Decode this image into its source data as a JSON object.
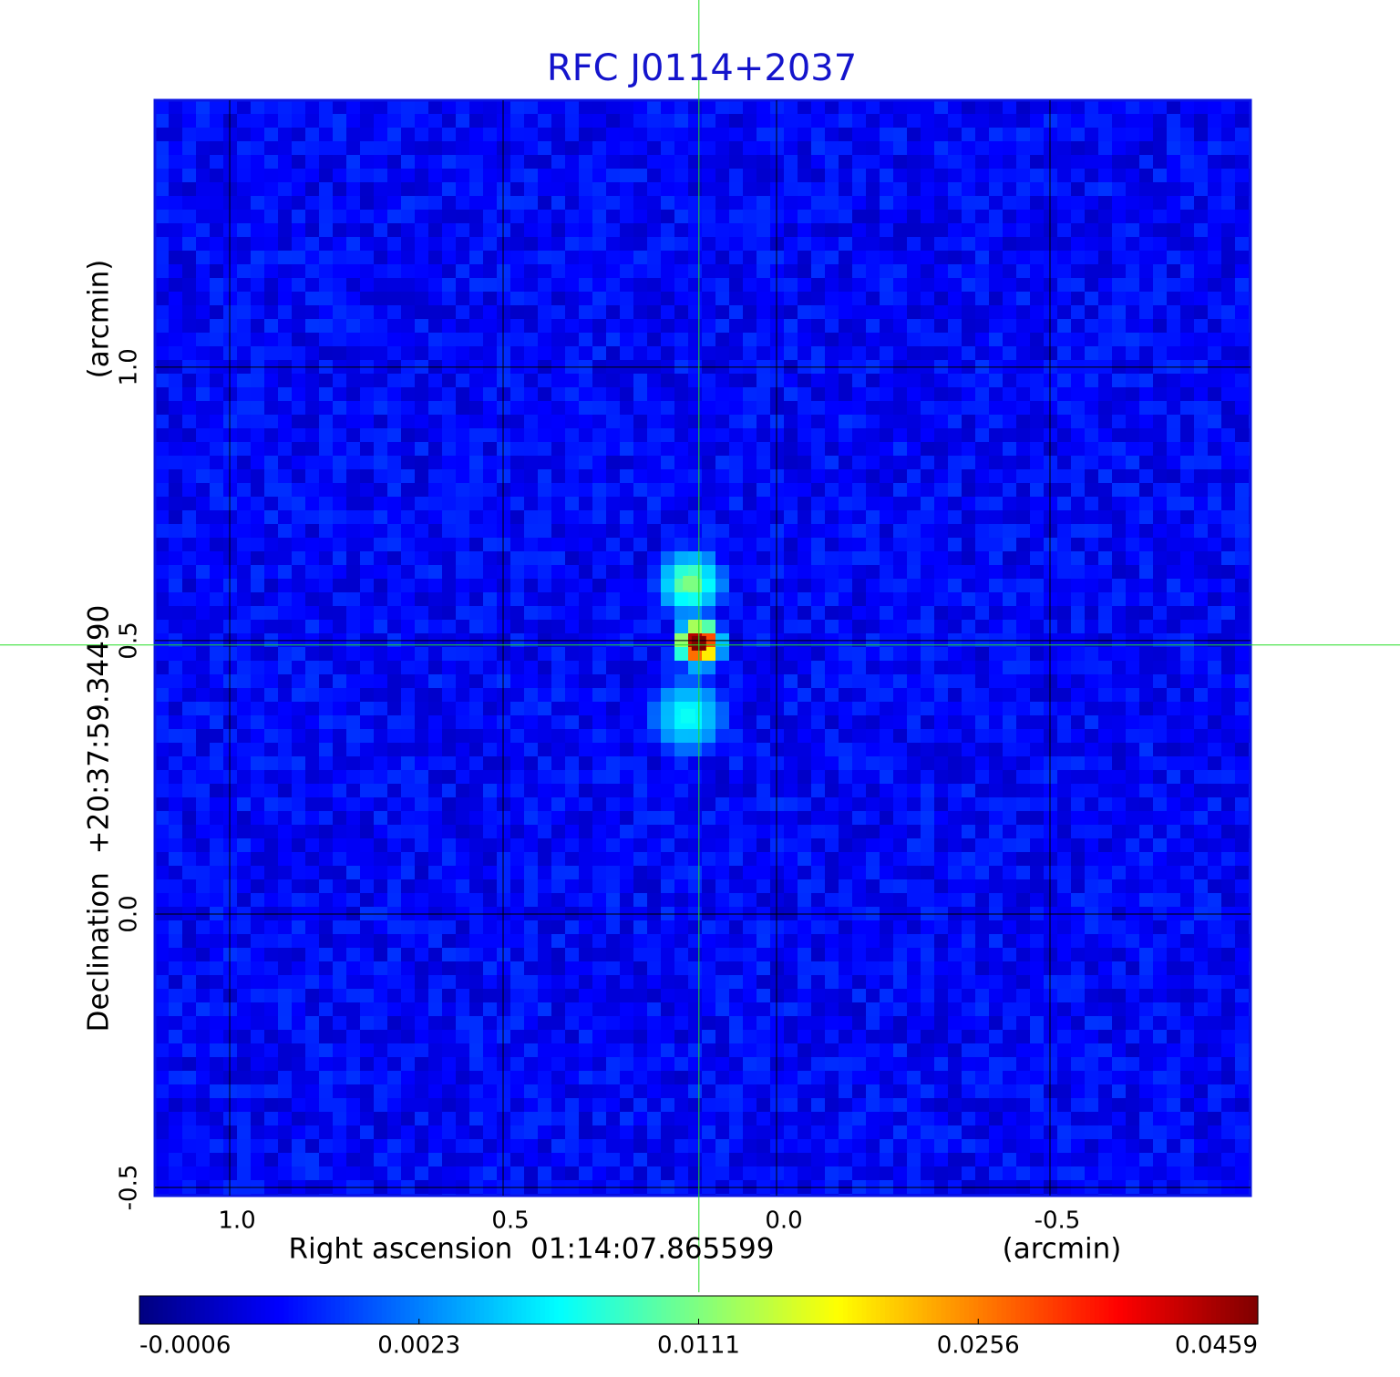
{
  "chart_data": {
    "type": "image",
    "title": "RFC J0114+2037",
    "x_label": "Right ascension  01:14:07.865599",
    "x_unit_label": "(arcmin)",
    "y_label": "Declination  +20:37:59.34490",
    "y_unit_label": "(arcmin)",
    "xlim": [
      1.1367,
      -0.8667
    ],
    "ylim": [
      -0.515,
      1.488
    ],
    "xticks": [
      {
        "value": 1,
        "label": "1.0"
      },
      0.5,
      {
        "value": 0,
        "label": "0.0"
      },
      -0.5
    ],
    "yticks": [
      -0.5,
      {
        "value": 0,
        "label": "0.0"
      },
      0.5,
      {
        "value": 1,
        "label": "1.0"
      }
    ],
    "grid": true,
    "colormap": "jet",
    "colorbar_ticks": [
      -0.0006,
      0.0023,
      0.0111,
      0.0256,
      0.0459
    ],
    "crosshair": {
      "x": 0.142,
      "y": 0.492
    },
    "sources": [
      {
        "x": 0.142,
        "y": 0.495,
        "peak": 0.0459
      },
      {
        "x": 0.158,
        "y": 0.605,
        "peak": 0.011
      },
      {
        "x": 0.162,
        "y": 0.362,
        "peak": 0.007
      }
    ]
  }
}
